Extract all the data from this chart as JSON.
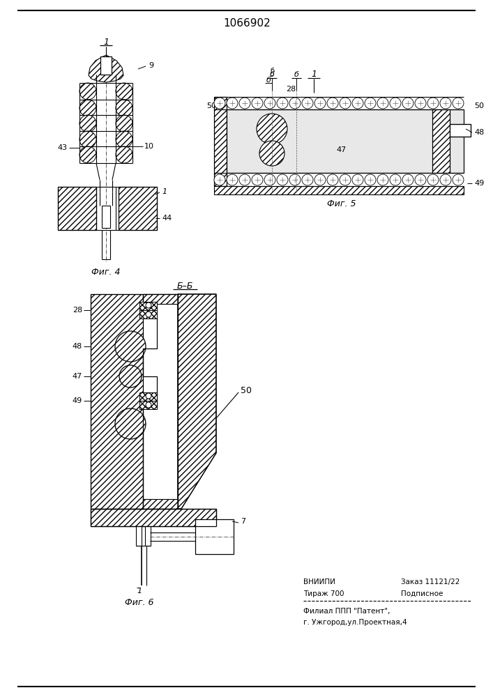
{
  "title": "1066902",
  "bg_color": "#ffffff",
  "fig4_caption": "Фиг. 4",
  "fig5_caption": "Фиг. 5",
  "fig6_caption": "Фиг. 6",
  "info_line1a": "ВНИИПИ",
  "info_line1b": "Заказ 11121/22",
  "info_line2a": "Тираж 700",
  "info_line2b": "Подписное",
  "info_line3": "Филиал ППП \"Патент\",",
  "info_line4": "г. Ужгород,ул.Проектная,4"
}
